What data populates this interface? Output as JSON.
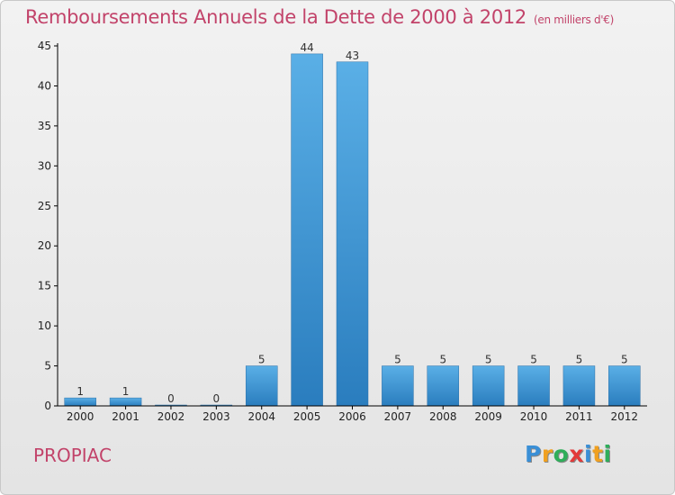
{
  "header": {
    "title": "Remboursements Annuels de la Dette de 2000 à 2012",
    "unit": "(en milliers d'€)"
  },
  "footer": {
    "commune": "PROPIAC",
    "logo": {
      "text": "Proxiti",
      "letters": [
        {
          "ch": "P",
          "color": "#3a8fd6"
        },
        {
          "ch": "r",
          "color": "#f0a020"
        },
        {
          "ch": "o",
          "color": "#2fae5a"
        },
        {
          "ch": "x",
          "color": "#e33a3a"
        },
        {
          "ch": "i",
          "color": "#3a8fd6"
        },
        {
          "ch": "t",
          "color": "#f0a020"
        },
        {
          "ch": "i",
          "color": "#2fae5a"
        }
      ]
    }
  },
  "colors": {
    "title": "#c2436a",
    "bar_light": "#5aafe6",
    "bar_dark": "#2a7dbe",
    "axis": "#000000"
  },
  "chart_data": {
    "type": "bar",
    "title": "Remboursements Annuels de la Dette de 2000 à 2012",
    "xlabel": "",
    "ylabel": "",
    "ylim": [
      0,
      45
    ],
    "yticks": [
      0,
      5,
      10,
      15,
      20,
      25,
      30,
      35,
      40,
      45
    ],
    "categories": [
      "2000",
      "2001",
      "2002",
      "2003",
      "2004",
      "2005",
      "2006",
      "2007",
      "2008",
      "2009",
      "2010",
      "2011",
      "2012"
    ],
    "values": [
      1,
      1,
      0,
      0,
      5,
      44,
      43,
      5,
      5,
      5,
      5,
      5,
      5
    ],
    "data_labels": [
      "1",
      "1",
      "0",
      "0",
      "5",
      "44",
      "43",
      "5",
      "5",
      "5",
      "5",
      "5",
      "5"
    ],
    "grid": false,
    "legend": "none"
  }
}
